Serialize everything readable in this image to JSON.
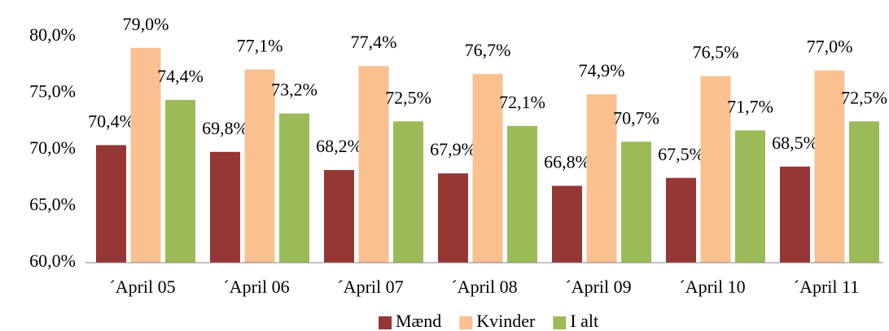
{
  "chart_data": {
    "type": "bar",
    "categories": [
      "´April 05",
      "´April 06",
      "´April 07",
      "´April 08",
      "´April 09",
      "´April 10",
      "´April 11"
    ],
    "series": [
      {
        "name": "Mænd",
        "color": "#953735",
        "values": [
          70.4,
          69.8,
          68.2,
          67.9,
          66.8,
          67.5,
          68.5
        ],
        "value_labels": [
          "70,4%",
          "69,8%",
          "68,2%",
          "67,9%",
          "66,8%",
          "67,5%",
          "68,5%"
        ]
      },
      {
        "name": "Kvinder",
        "color": "#fac090",
        "values": [
          79.0,
          77.1,
          77.4,
          76.7,
          74.9,
          76.5,
          77.0
        ],
        "value_labels": [
          "79,0%",
          "77,1%",
          "77,4%",
          "76,7%",
          "74,9%",
          "76,5%",
          "77,0%"
        ]
      },
      {
        "name": "I alt",
        "color": "#9bbb59",
        "values": [
          74.4,
          73.2,
          72.5,
          72.1,
          70.7,
          71.7,
          72.5
        ],
        "value_labels": [
          "74,4%",
          "73,2%",
          "72,5%",
          "72,1%",
          "70,7%",
          "71,7%",
          "72,5%"
        ]
      }
    ],
    "ylim": [
      60,
      80
    ],
    "yticks": [
      {
        "value": 60,
        "label": "60,0%"
      },
      {
        "value": 65,
        "label": "65,0%"
      },
      {
        "value": 70,
        "label": "70,0%"
      },
      {
        "value": 75,
        "label": "75,0%"
      },
      {
        "value": 80,
        "label": "80,0%"
      }
    ],
    "grid": false,
    "legend": "bottom"
  }
}
